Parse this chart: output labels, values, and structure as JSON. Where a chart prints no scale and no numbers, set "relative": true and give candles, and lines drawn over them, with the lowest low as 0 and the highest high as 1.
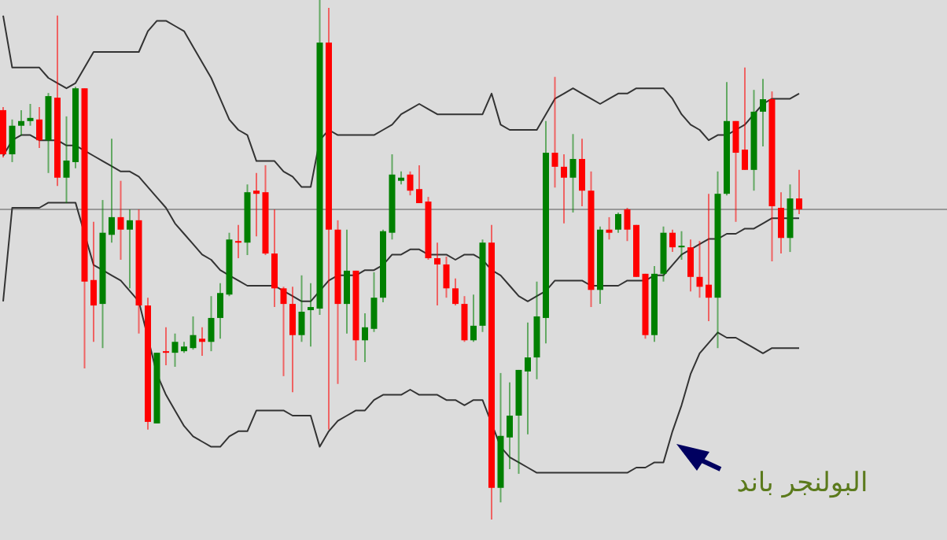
{
  "chart_data": {
    "type": "candlestick",
    "relative": true,
    "categories": [
      null,
      null,
      null,
      null,
      null,
      null,
      null,
      null,
      null,
      null,
      null,
      null,
      null,
      null,
      null,
      null,
      null,
      null,
      null,
      null,
      null,
      null,
      null,
      null,
      null,
      null,
      null,
      null,
      null,
      null,
      null,
      null,
      null,
      null,
      null,
      null,
      null,
      null,
      null,
      null,
      null,
      null,
      null,
      null,
      null,
      null,
      null,
      null,
      null,
      null,
      null,
      null,
      null,
      null,
      null,
      null,
      null,
      null,
      null,
      null,
      null,
      null,
      null,
      null,
      null,
      null,
      null,
      null,
      null,
      null,
      null,
      null,
      null,
      null,
      null,
      null,
      null,
      null,
      null,
      null,
      null,
      null,
      null,
      null,
      null,
      null,
      null,
      null,
      null
    ],
    "ohlc": [
      [
        0.788,
        0.794,
        0.697,
        0.703
      ],
      [
        0.703,
        0.77,
        0.688,
        0.758
      ],
      [
        0.758,
        0.788,
        0.739,
        0.767
      ],
      [
        0.767,
        0.8,
        0.758,
        0.773
      ],
      [
        0.77,
        0.794,
        0.715,
        0.73
      ],
      [
        0.73,
        0.821,
        0.667,
        0.815
      ],
      [
        0.812,
        0.97,
        0.642,
        0.658
      ],
      [
        0.658,
        0.776,
        0.609,
        0.691
      ],
      [
        0.688,
        0.833,
        0.676,
        0.83
      ],
      [
        0.83,
        0.83,
        0.291,
        0.458
      ],
      [
        0.461,
        0.573,
        0.342,
        0.412
      ],
      [
        0.415,
        0.615,
        0.33,
        0.552
      ],
      [
        0.548,
        0.733,
        0.533,
        0.582
      ],
      [
        0.582,
        0.652,
        0.5,
        0.558
      ],
      [
        0.558,
        0.597,
        0.445,
        0.576
      ],
      [
        0.576,
        0.597,
        0.358,
        0.412
      ],
      [
        0.412,
        0.427,
        0.173,
        0.188
      ],
      [
        0.185,
        0.321,
        0.185,
        0.321
      ],
      [
        0.324,
        0.37,
        0.297,
        0.321
      ],
      [
        0.321,
        0.358,
        0.294,
        0.342
      ],
      [
        0.324,
        0.342,
        0.321,
        0.333
      ],
      [
        0.33,
        0.391,
        0.327,
        0.355
      ],
      [
        0.348,
        0.37,
        0.315,
        0.342
      ],
      [
        0.342,
        0.43,
        0.324,
        0.388
      ],
      [
        0.388,
        0.455,
        0.348,
        0.436
      ],
      [
        0.433,
        0.552,
        0.43,
        0.539
      ],
      [
        0.536,
        0.567,
        0.503,
        0.533
      ],
      [
        0.533,
        0.645,
        0.509,
        0.63
      ],
      [
        0.633,
        0.667,
        0.545,
        0.627
      ],
      [
        0.63,
        0.682,
        0.509,
        0.512
      ],
      [
        0.512,
        0.597,
        0.409,
        0.445
      ],
      [
        0.445,
        0.448,
        0.276,
        0.415
      ],
      [
        0.415,
        0.448,
        0.245,
        0.355
      ],
      [
        0.355,
        0.47,
        0.342,
        0.4
      ],
      [
        0.403,
        0.455,
        0.333,
        0.409
      ],
      [
        0.406,
        1,
        0.394,
        0.918
      ],
      [
        0.918,
        0.985,
        0.173,
        0.558
      ],
      [
        0.558,
        0.576,
        0.261,
        0.415
      ],
      [
        0.415,
        0.558,
        0.358,
        0.479
      ],
      [
        0.479,
        0.479,
        0.306,
        0.345
      ],
      [
        0.345,
        0.397,
        0.303,
        0.37
      ],
      [
        0.367,
        0.476,
        0.361,
        0.427
      ],
      [
        0.427,
        0.558,
        0.418,
        0.555
      ],
      [
        0.552,
        0.703,
        0.539,
        0.664
      ],
      [
        0.652,
        0.67,
        0.645,
        0.658
      ],
      [
        0.664,
        0.67,
        0.624,
        0.633
      ],
      [
        0.636,
        0.682,
        0.609,
        0.609
      ],
      [
        0.612,
        0.621,
        0.5,
        0.503
      ],
      [
        0.503,
        0.533,
        0.412,
        0.491
      ],
      [
        0.491,
        0.506,
        0.427,
        0.445
      ],
      [
        0.445,
        0.464,
        0.412,
        0.415
      ],
      [
        0.415,
        0.43,
        0.342,
        0.345
      ],
      [
        0.345,
        0.433,
        0.342,
        0.373
      ],
      [
        0.373,
        0.539,
        0.361,
        0.533
      ],
      [
        0.533,
        0.567,
        0,
        0.061
      ],
      [
        0.061,
        0.282,
        0.033,
        0.161
      ],
      [
        0.158,
        0.264,
        0.097,
        0.2
      ],
      [
        0.2,
        0.288,
        0.088,
        0.288
      ],
      [
        0.285,
        0.379,
        0.164,
        0.312
      ],
      [
        0.312,
        0.458,
        0.27,
        0.391
      ],
      [
        0.388,
        0.767,
        0.339,
        0.706
      ],
      [
        0.706,
        0.852,
        0.639,
        0.679
      ],
      [
        0.679,
        0.703,
        0.57,
        0.658
      ],
      [
        0.658,
        0.742,
        0.591,
        0.694
      ],
      [
        0.694,
        0.733,
        0.603,
        0.633
      ],
      [
        0.633,
        0.67,
        0.409,
        0.442
      ],
      [
        0.442,
        0.564,
        0.415,
        0.558
      ],
      [
        0.558,
        0.582,
        0.539,
        0.552
      ],
      [
        0.558,
        0.591,
        0.552,
        0.588
      ],
      [
        0.597,
        0.6,
        0.536,
        0.558
      ],
      [
        0.567,
        0.567,
        0.467,
        0.467
      ],
      [
        0.473,
        0.473,
        0.348,
        0.355
      ],
      [
        0.355,
        0.488,
        0.342,
        0.473
      ],
      [
        0.473,
        0.564,
        0.458,
        0.552
      ],
      [
        0.552,
        0.558,
        0.515,
        0.524
      ],
      [
        0.524,
        0.555,
        0.5,
        0.527
      ],
      [
        0.524,
        0.539,
        0.439,
        0.467
      ],
      [
        0.467,
        0.536,
        0.427,
        0.448
      ],
      [
        0.452,
        0.627,
        0.382,
        0.427
      ],
      [
        0.427,
        0.67,
        0.33,
        0.627
      ],
      [
        0.627,
        0.842,
        0.624,
        0.767
      ],
      [
        0.767,
        0.767,
        0.573,
        0.706
      ],
      [
        0.712,
        0.87,
        0.673,
        0.673
      ],
      [
        0.673,
        0.827,
        0.633,
        0.785
      ],
      [
        0.785,
        0.848,
        0.718,
        0.809
      ],
      [
        0.809,
        0.824,
        0.497,
        0.603
      ],
      [
        0.6,
        0.63,
        0.512,
        0.542
      ],
      [
        0.542,
        0.645,
        0.515,
        0.618
      ],
      [
        0.618,
        0.673,
        0.588,
        0.597
      ]
    ],
    "colors": [
      "#ff0000",
      "#008000",
      "#008000",
      "#008000",
      "#ff0000",
      "#008000",
      "#ff0000",
      "#008000",
      "#008000",
      "#ff0000",
      "#ff0000",
      "#008000",
      "#008000",
      "#ff0000",
      "#008000",
      "#ff0000",
      "#ff0000",
      "#008000",
      "#ff0000",
      "#008000",
      "#008000",
      "#008000",
      "#ff0000",
      "#008000",
      "#008000",
      "#008000",
      "#ff0000",
      "#008000",
      "#ff0000",
      "#ff0000",
      "#ff0000",
      "#ff0000",
      "#ff0000",
      "#008000",
      "#008000",
      "#008000",
      "#ff0000",
      "#ff0000",
      "#008000",
      "#ff0000",
      "#008000",
      "#008000",
      "#008000",
      "#008000",
      "#008000",
      "#ff0000",
      "#ff0000",
      "#ff0000",
      "#ff0000",
      "#ff0000",
      "#ff0000",
      "#ff0000",
      "#008000",
      "#008000",
      "#ff0000",
      "#008000",
      "#008000",
      "#008000",
      "#008000",
      "#008000",
      "#008000",
      "#ff0000",
      "#ff0000",
      "#008000",
      "#ff0000",
      "#ff0000",
      "#008000",
      "#ff0000",
      "#008000",
      "#ff0000",
      "#ff0000",
      "#ff0000",
      "#008000",
      "#008000",
      "#ff0000",
      "#008000",
      "#ff0000",
      "#ff0000",
      "#ff0000",
      "#008000",
      "#008000",
      "#ff0000",
      "#ff0000",
      "#008000",
      "#008000",
      "#ff0000",
      "#ff0000",
      "#008000",
      "#ff0000"
    ],
    "series": [
      {
        "type": "line",
        "color": "#333333",
        "values": [
          0.97,
          0.87,
          0.87,
          0.87,
          0.87,
          0.85,
          0.84,
          0.83,
          0.84,
          0.87,
          0.9,
          0.9,
          0.9,
          0.9,
          0.9,
          0.9,
          0.94,
          0.96,
          0.96,
          0.95,
          0.94,
          0.91,
          0.88,
          0.85,
          0.81,
          0.77,
          0.75,
          0.74,
          0.69,
          0.69,
          0.69,
          0.67,
          0.66,
          0.64,
          0.64,
          0.73,
          0.75,
          0.74,
          0.74,
          0.74,
          0.74,
          0.74,
          0.75,
          0.76,
          0.78,
          0.79,
          0.8,
          0.79,
          0.78,
          0.78,
          0.78,
          0.78,
          0.78,
          0.78,
          0.82,
          0.76,
          0.75,
          0.75,
          0.75,
          0.75,
          0.78,
          0.81,
          0.82,
          0.83,
          0.82,
          0.81,
          0.8,
          0.81,
          0.82,
          0.82,
          0.83,
          0.83,
          0.83,
          0.83,
          0.81,
          0.78,
          0.76,
          0.75,
          0.73,
          0.74,
          0.74,
          0.75,
          0.76,
          0.78,
          0.8,
          0.81,
          0.81,
          0.81,
          0.82
        ]
      },
      {
        "type": "line",
        "color": "#333333",
        "values": [
          0.7,
          0.73,
          0.74,
          0.74,
          0.73,
          0.73,
          0.73,
          0.72,
          0.72,
          0.71,
          0.7,
          0.69,
          0.68,
          0.67,
          0.67,
          0.66,
          0.64,
          0.62,
          0.6,
          0.57,
          0.55,
          0.53,
          0.51,
          0.5,
          0.48,
          0.47,
          0.46,
          0.45,
          0.45,
          0.45,
          0.45,
          0.44,
          0.43,
          0.42,
          0.42,
          0.44,
          0.46,
          0.47,
          0.47,
          0.47,
          0.48,
          0.48,
          0.49,
          0.51,
          0.51,
          0.52,
          0.52,
          0.51,
          0.51,
          0.51,
          0.5,
          0.51,
          0.51,
          0.5,
          0.48,
          0.47,
          0.45,
          0.43,
          0.42,
          0.43,
          0.44,
          0.46,
          0.46,
          0.46,
          0.46,
          0.45,
          0.45,
          0.45,
          0.45,
          0.46,
          0.46,
          0.46,
          0.47,
          0.47,
          0.49,
          0.51,
          0.52,
          0.53,
          0.54,
          0.54,
          0.55,
          0.55,
          0.56,
          0.56,
          0.57,
          0.58,
          0.58,
          0.58,
          0.58
        ]
      },
      {
        "type": "line",
        "color": "#333333",
        "values": [
          0.42,
          0.6,
          0.6,
          0.6,
          0.6,
          0.61,
          0.61,
          0.61,
          0.61,
          null,
          0.49,
          0.48,
          0.47,
          0.46,
          0.44,
          0.42,
          null,
          0.28,
          0.24,
          0.21,
          0.18,
          0.16,
          0.15,
          0.14,
          0.14,
          0.16,
          0.17,
          0.17,
          0.21,
          0.21,
          0.21,
          0.21,
          0.2,
          0.2,
          0.2,
          0.14,
          0.17,
          0.19,
          0.2,
          0.21,
          0.21,
          0.23,
          0.24,
          0.24,
          0.24,
          0.25,
          0.24,
          0.24,
          0.24,
          0.23,
          0.23,
          0.22,
          0.23,
          0.23,
          null,
          0.14,
          0.12,
          0.11,
          0.1,
          0.09,
          0.09,
          0.09,
          0.09,
          0.09,
          0.09,
          0.09,
          0.09,
          0.09,
          0.09,
          0.09,
          0.1,
          0.1,
          0.11,
          0.11,
          0.17,
          0.22,
          0.28,
          0.32,
          0.34,
          0.36,
          0.35,
          0.35,
          0.34,
          0.33,
          0.32,
          0.33,
          0.33,
          0.33,
          0.33
        ]
      }
    ],
    "ref_lines": [
      {
        "axis": "y",
        "value": 0.597,
        "color": "#999999"
      }
    ],
    "annotations": [
      "البولنجر باند"
    ]
  }
}
